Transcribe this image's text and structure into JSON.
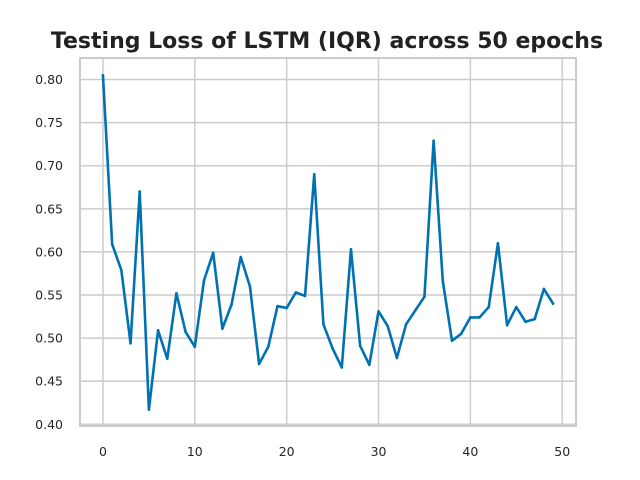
{
  "chart_data": {
    "type": "line",
    "title": "Testing Loss of LSTM (IQR) across 50 epochs",
    "xlabel": "",
    "ylabel": "",
    "xlim": [
      -2.5,
      51.5
    ],
    "ylim": [
      0.398,
      0.825
    ],
    "xticks": [
      0,
      10,
      20,
      30,
      40,
      50
    ],
    "yticks": [
      0.4,
      0.45,
      0.5,
      0.55,
      0.6,
      0.65,
      0.7,
      0.75,
      0.8
    ],
    "ytick_labels": [
      "0.40",
      "0.45",
      "0.50",
      "0.55",
      "0.60",
      "0.65",
      "0.70",
      "0.75",
      "0.80"
    ],
    "grid": true,
    "series": [
      {
        "color": "#0072b2",
        "x": [
          0,
          1,
          2,
          3,
          4,
          5,
          6,
          7,
          8,
          9,
          10,
          11,
          12,
          13,
          14,
          15,
          16,
          17,
          18,
          19,
          20,
          21,
          22,
          23,
          24,
          25,
          26,
          27,
          28,
          29,
          30,
          31,
          32,
          33,
          34,
          35,
          36,
          37,
          38,
          39,
          40,
          41,
          42,
          43,
          44,
          45,
          46,
          47,
          48,
          49
        ],
        "values": [
          0.805,
          0.609,
          0.579,
          0.494,
          0.67,
          0.417,
          0.509,
          0.476,
          0.552,
          0.507,
          0.49,
          0.567,
          0.599,
          0.511,
          0.539,
          0.594,
          0.56,
          0.47,
          0.49,
          0.537,
          0.535,
          0.553,
          0.549,
          0.69,
          0.516,
          0.488,
          0.466,
          0.603,
          0.491,
          0.469,
          0.531,
          0.514,
          0.477,
          0.516,
          0.532,
          0.548,
          0.729,
          0.566,
          0.497,
          0.505,
          0.524,
          0.524,
          0.536,
          0.61,
          0.515,
          0.536,
          0.519,
          0.522,
          0.557,
          0.54
        ]
      }
    ]
  }
}
